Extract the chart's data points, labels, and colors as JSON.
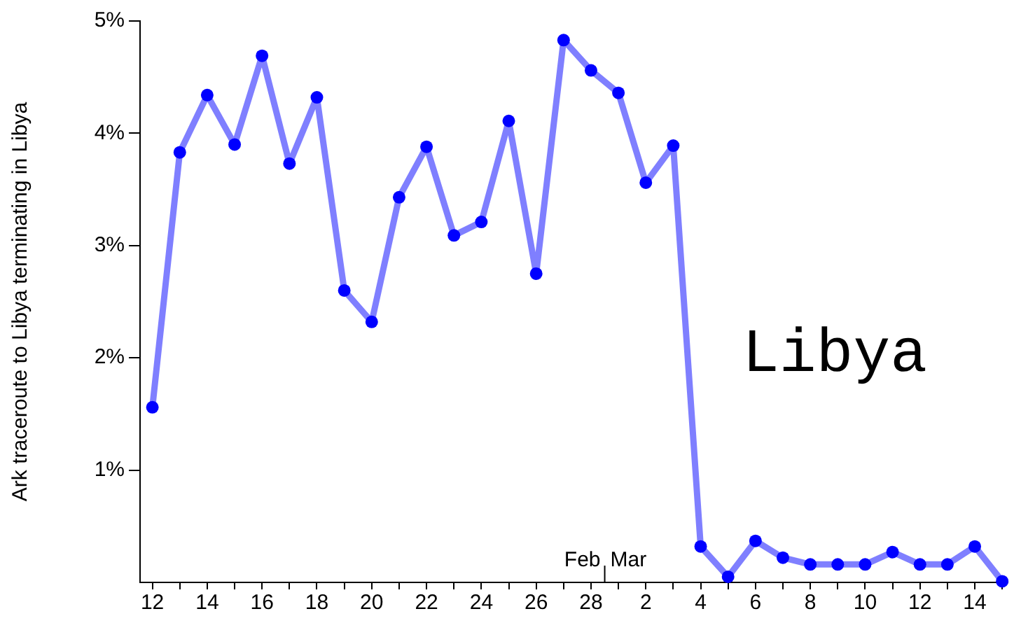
{
  "chart_data": {
    "type": "line",
    "ylabel": "Ark traceroute to Libya terminating in Libya",
    "categories": [
      "12",
      null,
      "14",
      null,
      "16",
      null,
      "18",
      null,
      "20",
      null,
      "22",
      null,
      "24",
      null,
      "26",
      null,
      "28",
      null,
      "2",
      null,
      "4",
      null,
      "6",
      null,
      "8",
      null,
      "10",
      null,
      "12",
      null,
      "14",
      null
    ],
    "series": [
      {
        "color": "#0000ff",
        "values": [
          1.56,
          3.83,
          4.34,
          3.9,
          4.69,
          3.73,
          4.32,
          2.6,
          2.32,
          3.43,
          3.88,
          3.09,
          3.21,
          4.11,
          2.75,
          4.83,
          4.56,
          4.36,
          3.56,
          3.89,
          0.32,
          0.05,
          0.37,
          0.22,
          0.16,
          0.16,
          0.16,
          0.27,
          0.16,
          0.16,
          0.32,
          0.01
        ]
      }
    ],
    "ylim": [
      0,
      5
    ],
    "yticks": [
      {
        "value": 1,
        "label": "1%"
      },
      {
        "value": 2,
        "label": "2%"
      },
      {
        "value": 3,
        "label": "3%"
      },
      {
        "value": 4,
        "label": "4%"
      },
      {
        "value": 5,
        "label": "5%"
      }
    ],
    "annotations": [
      "Libya",
      "Feb",
      "Mar"
    ],
    "marker": "circle",
    "grid": false,
    "legend": false
  }
}
